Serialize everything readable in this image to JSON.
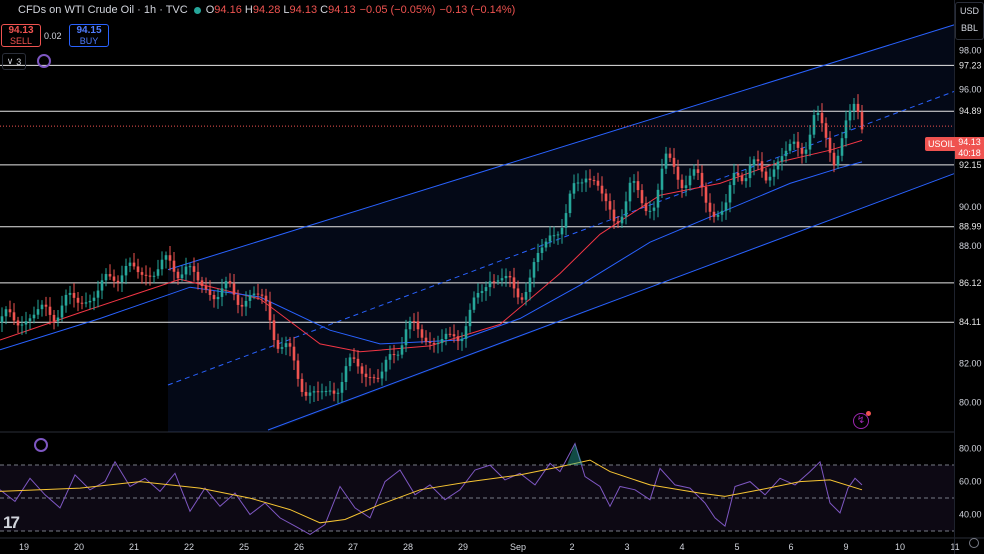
{
  "header": {
    "title": "CFDs on WTI Crude Oil · 1h · TVC",
    "ohlc": [
      {
        "k": "O",
        "v": "94.16"
      },
      {
        "k": "H",
        "v": "94.28"
      },
      {
        "k": "L",
        "v": "94.13"
      },
      {
        "k": "C",
        "v": "94.13"
      }
    ],
    "change": "−0.05 (−0.05%)",
    "change2": "−0.13 (−0.14%)"
  },
  "trade": {
    "sell_price": "94.13",
    "sell_label": "SELL",
    "spread": "0.02",
    "buy_price": "94.15",
    "buy_label": "BUY"
  },
  "indicators_count": "3",
  "unit": {
    "currency": "USD",
    "qty": "BBL"
  },
  "symbol": {
    "name": "USOIL",
    "price": "94.13",
    "countdown": "40:18"
  },
  "colors": {
    "bull": "#26a69a",
    "bear": "#ef5350",
    "channel": "#2962ff",
    "ma_fast": "#f23645",
    "ma_slow": "#2962ff",
    "rsi": "#7e57c2",
    "rsi_ma": "#f7c533"
  },
  "chart_data": [
    {
      "type": "candlestick",
      "title": "CFDs on WTI Crude Oil · 1h · TVC",
      "x_labels": [
        "19",
        "20",
        "21",
        "22",
        "25",
        "26",
        "27",
        "28",
        "29",
        "Sep",
        "2",
        "3",
        "4",
        "5",
        "6",
        "9",
        "10",
        "11"
      ],
      "y_ticks": [
        80.0,
        82.0,
        84.0,
        86.0,
        88.0,
        90.0,
        92.0,
        94.0,
        96.0,
        98.0
      ],
      "ylim": [
        78.5,
        99.5
      ],
      "horizontal_levels": [
        84.11,
        86.12,
        88.99,
        92.15,
        94.89,
        97.23
      ],
      "last_price": 94.13,
      "close_path": [
        [
          0,
          84.1
        ],
        [
          40,
          84.5
        ],
        [
          75,
          85.2
        ],
        [
          100,
          85.6
        ],
        [
          115,
          86.8
        ],
        [
          140,
          86.6
        ],
        [
          160,
          86.9
        ],
        [
          185,
          87.0
        ],
        [
          200,
          85.9
        ],
        [
          235,
          85.5
        ],
        [
          265,
          85.2
        ],
        [
          275,
          83.5
        ],
        [
          295,
          81.8
        ],
        [
          305,
          80.7
        ],
        [
          325,
          80.2
        ],
        [
          345,
          81.6
        ],
        [
          360,
          81.9
        ],
        [
          380,
          81.1
        ],
        [
          405,
          83.8
        ],
        [
          430,
          83.3
        ],
        [
          450,
          83.0
        ],
        [
          470,
          84.5
        ],
        [
          490,
          86.4
        ],
        [
          500,
          86.6
        ],
        [
          515,
          85.4
        ],
        [
          530,
          86.4
        ],
        [
          550,
          88.6
        ],
        [
          565,
          89.4
        ],
        [
          575,
          90.8
        ],
        [
          585,
          92.1
        ],
        [
          600,
          90.6
        ],
        [
          615,
          89.3
        ],
        [
          630,
          90.8
        ],
        [
          655,
          90.0
        ],
        [
          665,
          92.5
        ],
        [
          680,
          91.6
        ],
        [
          700,
          91.2
        ],
        [
          715,
          89.6
        ],
        [
          725,
          89.8
        ],
        [
          735,
          91.6
        ],
        [
          750,
          92.2
        ],
        [
          765,
          91.4
        ],
        [
          780,
          92.7
        ],
        [
          800,
          92.9
        ],
        [
          815,
          94.6
        ],
        [
          825,
          93.6
        ],
        [
          835,
          92.2
        ],
        [
          845,
          94.5
        ],
        [
          855,
          94.7
        ],
        [
          862,
          94.13
        ]
      ],
      "channel_upper": [
        [
          168,
          86.8
        ],
        [
          954,
          99.3
        ]
      ],
      "channel_mid": [
        [
          168,
          80.9
        ],
        [
          954,
          95.9
        ]
      ],
      "channel_lower": [
        [
          268,
          78.6
        ],
        [
          954,
          91.7
        ]
      ],
      "channel_fill_start": 168,
      "series": [
        {
          "name": "",
          "color": "#f23645",
          "values": [
            [
              0,
              83.2
            ],
            [
              80,
              84.6
            ],
            [
              180,
              86.3
            ],
            [
              260,
              85.3
            ],
            [
              320,
              83.0
            ],
            [
              360,
              82.6
            ],
            [
              430,
              82.9
            ],
            [
              500,
              84.0
            ],
            [
              560,
              86.6
            ],
            [
              600,
              88.6
            ],
            [
              660,
              90.6
            ],
            [
              720,
              91.2
            ],
            [
              780,
              92.3
            ],
            [
              830,
              92.9
            ],
            [
              862,
              93.4
            ]
          ]
        },
        {
          "name": "",
          "color": "#2962ff",
          "values": [
            [
              0,
              82.7
            ],
            [
              100,
              84.3
            ],
            [
              190,
              85.9
            ],
            [
              260,
              85.4
            ],
            [
              330,
              83.7
            ],
            [
              380,
              83.0
            ],
            [
              460,
              83.2
            ],
            [
              520,
              84.3
            ],
            [
              580,
              86.0
            ],
            [
              650,
              88.2
            ],
            [
              720,
              89.7
            ],
            [
              790,
              91.2
            ],
            [
              840,
              92.0
            ],
            [
              862,
              92.3
            ]
          ]
        }
      ]
    },
    {
      "type": "line",
      "title": "RSI",
      "y_ticks": [
        40.0,
        60.0,
        80.0
      ],
      "ylim": [
        27,
        87
      ],
      "bands": [
        30,
        50,
        70
      ],
      "series": [
        {
          "name": "",
          "color": "#7e57c2",
          "values": [
            [
              0,
              55
            ],
            [
              15,
              48
            ],
            [
              30,
              62
            ],
            [
              45,
              52
            ],
            [
              60,
              44
            ],
            [
              75,
              64
            ],
            [
              90,
              55
            ],
            [
              105,
              60
            ],
            [
              115,
              72
            ],
            [
              130,
              57
            ],
            [
              145,
              62
            ],
            [
              160,
              54
            ],
            [
              175,
              65
            ],
            [
              190,
              42
            ],
            [
              205,
              56
            ],
            [
              220,
              45
            ],
            [
              235,
              53
            ],
            [
              250,
              40
            ],
            [
              265,
              47
            ],
            [
              280,
              38
            ],
            [
              295,
              33
            ],
            [
              310,
              28
            ],
            [
              325,
              34
            ],
            [
              340,
              57
            ],
            [
              355,
              44
            ],
            [
              370,
              38
            ],
            [
              385,
              60
            ],
            [
              400,
              67
            ],
            [
              415,
              52
            ],
            [
              430,
              58
            ],
            [
              445,
              49
            ],
            [
              460,
              55
            ],
            [
              475,
              67
            ],
            [
              490,
              70
            ],
            [
              505,
              61
            ],
            [
              520,
              65
            ],
            [
              535,
              58
            ],
            [
              550,
              71
            ],
            [
              560,
              66
            ],
            [
              575,
              83
            ],
            [
              585,
              63
            ],
            [
              600,
              57
            ],
            [
              610,
              45
            ],
            [
              620,
              57
            ],
            [
              635,
              55
            ],
            [
              650,
              49
            ],
            [
              660,
              68
            ],
            [
              675,
              58
            ],
            [
              690,
              56
            ],
            [
              705,
              47
            ],
            [
              715,
              38
            ],
            [
              725,
              33
            ],
            [
              735,
              57
            ],
            [
              750,
              60
            ],
            [
              765,
              52
            ],
            [
              780,
              62
            ],
            [
              795,
              58
            ],
            [
              810,
              66
            ],
            [
              820,
              72
            ],
            [
              830,
              47
            ],
            [
              840,
              41
            ],
            [
              848,
              56
            ],
            [
              855,
              62
            ],
            [
              862,
              58
            ]
          ]
        },
        {
          "name": "",
          "color": "#f7c533",
          "values": [
            [
              0,
              54
            ],
            [
              80,
              56
            ],
            [
              140,
              60
            ],
            [
              200,
              56
            ],
            [
              250,
              50
            ],
            [
              290,
              43
            ],
            [
              320,
              35
            ],
            [
              345,
              37
            ],
            [
              380,
              46
            ],
            [
              420,
              55
            ],
            [
              470,
              60
            ],
            [
              520,
              64
            ],
            [
              560,
              69
            ],
            [
              590,
              73
            ],
            [
              610,
              66
            ],
            [
              650,
              58
            ],
            [
              700,
              53
            ],
            [
              725,
              51
            ],
            [
              760,
              55
            ],
            [
              800,
              60
            ],
            [
              830,
              61
            ],
            [
              862,
              55
            ]
          ]
        }
      ]
    }
  ]
}
